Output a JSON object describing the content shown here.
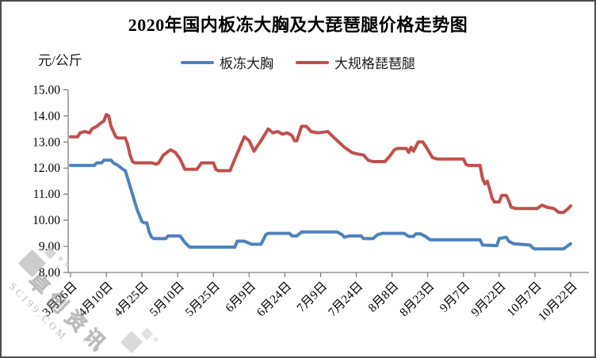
{
  "chart": {
    "title": "2020年国内板冻大胸及大琵琶腿价格走势图",
    "unit_label": "元/公斤",
    "legend": [
      {
        "label": "板冻大胸",
        "color": "#4F81BD"
      },
      {
        "label": "大规格琵琶腿",
        "color": "#C0504D"
      }
    ]
  },
  "watermark": {
    "line1": "卓创资讯",
    "line2": "SCI99.COM"
  },
  "chart_data": {
    "type": "line",
    "title": "2020年国内板冻大胸及大琵琶腿价格走势图",
    "xlabel": "",
    "ylabel": "元/公斤",
    "ylim": [
      8,
      15
    ],
    "grid": false,
    "legend_position": "top",
    "ytick_labels": [
      "15.00",
      "14.00",
      "13.00",
      "12.00",
      "11.00",
      "10.00",
      "9.00",
      "8.00"
    ],
    "xtick_labels": [
      "3月26日",
      "4月10日",
      "4月25日",
      "5月10日",
      "5月25日",
      "6月9日",
      "6月24日",
      "7月9日",
      "7月24日",
      "8月8日",
      "8月23日",
      "9月7日",
      "9月22日",
      "10月7日",
      "10月22日"
    ],
    "xtick_interval_days": 15,
    "x_domain_days": 210,
    "series": [
      {
        "name": "板冻大胸",
        "color": "#4F81BD",
        "points": [
          [
            0,
            12.1
          ],
          [
            10,
            12.1
          ],
          [
            11,
            12.2
          ],
          [
            13,
            12.2
          ],
          [
            14,
            12.3
          ],
          [
            17,
            12.3
          ],
          [
            18,
            12.2
          ],
          [
            20,
            12.1
          ],
          [
            22,
            11.95
          ],
          [
            23,
            11.9
          ],
          [
            24,
            11.6
          ],
          [
            26,
            11.0
          ],
          [
            28,
            10.4
          ],
          [
            30,
            9.95
          ],
          [
            31,
            9.9
          ],
          [
            32,
            9.9
          ],
          [
            33,
            9.55
          ],
          [
            34,
            9.35
          ],
          [
            35,
            9.3
          ],
          [
            40,
            9.3
          ],
          [
            41,
            9.4
          ],
          [
            46,
            9.4
          ],
          [
            48,
            9.15
          ],
          [
            50,
            8.97
          ],
          [
            69,
            8.97
          ],
          [
            70,
            9.2
          ],
          [
            73,
            9.2
          ],
          [
            76,
            9.08
          ],
          [
            80,
            9.08
          ],
          [
            82,
            9.45
          ],
          [
            83,
            9.5
          ],
          [
            92,
            9.5
          ],
          [
            93,
            9.4
          ],
          [
            95,
            9.4
          ],
          [
            97,
            9.55
          ],
          [
            112,
            9.55
          ],
          [
            114,
            9.45
          ],
          [
            115,
            9.35
          ],
          [
            117,
            9.4
          ],
          [
            122,
            9.4
          ],
          [
            123,
            9.3
          ],
          [
            127,
            9.3
          ],
          [
            129,
            9.45
          ],
          [
            131,
            9.5
          ],
          [
            140,
            9.5
          ],
          [
            142,
            9.38
          ],
          [
            144,
            9.38
          ],
          [
            145,
            9.48
          ],
          [
            147,
            9.48
          ],
          [
            149,
            9.38
          ],
          [
            151,
            9.25
          ],
          [
            172,
            9.25
          ],
          [
            173,
            9.05
          ],
          [
            179,
            9.03
          ],
          [
            180,
            9.3
          ],
          [
            183,
            9.35
          ],
          [
            184,
            9.2
          ],
          [
            186,
            9.1
          ],
          [
            193,
            9.05
          ],
          [
            194,
            8.95
          ],
          [
            195,
            8.9
          ],
          [
            207,
            8.9
          ],
          [
            210,
            9.1
          ]
        ]
      },
      {
        "name": "大规格琵琶腿",
        "color": "#C0504D",
        "points": [
          [
            0,
            13.2
          ],
          [
            3,
            13.2
          ],
          [
            4,
            13.35
          ],
          [
            6,
            13.4
          ],
          [
            8,
            13.35
          ],
          [
            9,
            13.5
          ],
          [
            11,
            13.6
          ],
          [
            13,
            13.75
          ],
          [
            14,
            13.8
          ],
          [
            15,
            14.05
          ],
          [
            16,
            14.0
          ],
          [
            17,
            13.6
          ],
          [
            19,
            13.2
          ],
          [
            20,
            13.15
          ],
          [
            23,
            13.15
          ],
          [
            24,
            12.9
          ],
          [
            25,
            12.5
          ],
          [
            26,
            12.25
          ],
          [
            27,
            12.2
          ],
          [
            34,
            12.2
          ],
          [
            36,
            12.15
          ],
          [
            37,
            12.2
          ],
          [
            39,
            12.5
          ],
          [
            42,
            12.7
          ],
          [
            44,
            12.6
          ],
          [
            46,
            12.35
          ],
          [
            48,
            11.95
          ],
          [
            53,
            11.95
          ],
          [
            55,
            12.2
          ],
          [
            60,
            12.2
          ],
          [
            61,
            11.95
          ],
          [
            62,
            11.9
          ],
          [
            67,
            11.9
          ],
          [
            69,
            12.35
          ],
          [
            73,
            13.2
          ],
          [
            75,
            13.05
          ],
          [
            77,
            12.65
          ],
          [
            80,
            13.05
          ],
          [
            83,
            13.5
          ],
          [
            85,
            13.35
          ],
          [
            87,
            13.4
          ],
          [
            89,
            13.3
          ],
          [
            91,
            13.35
          ],
          [
            93,
            13.25
          ],
          [
            94,
            13.05
          ],
          [
            95,
            13.05
          ],
          [
            97,
            13.6
          ],
          [
            99,
            13.6
          ],
          [
            101,
            13.4
          ],
          [
            104,
            13.35
          ],
          [
            108,
            13.4
          ],
          [
            112,
            13.05
          ],
          [
            115,
            12.8
          ],
          [
            118,
            12.6
          ],
          [
            120,
            12.55
          ],
          [
            123,
            12.5
          ],
          [
            125,
            12.3
          ],
          [
            127,
            12.25
          ],
          [
            132,
            12.25
          ],
          [
            134,
            12.45
          ],
          [
            136,
            12.7
          ],
          [
            137,
            12.75
          ],
          [
            141,
            12.75
          ],
          [
            142,
            12.6
          ],
          [
            143,
            12.8
          ],
          [
            144,
            12.65
          ],
          [
            146,
            13.0
          ],
          [
            148,
            13.0
          ],
          [
            150,
            12.7
          ],
          [
            152,
            12.4
          ],
          [
            154,
            12.35
          ],
          [
            165,
            12.35
          ],
          [
            166,
            12.15
          ],
          [
            167,
            12.1
          ],
          [
            172,
            12.1
          ],
          [
            173,
            11.6
          ],
          [
            174,
            11.4
          ],
          [
            175,
            11.5
          ],
          [
            176,
            11.2
          ],
          [
            177,
            10.85
          ],
          [
            178,
            10.7
          ],
          [
            180,
            10.7
          ],
          [
            181,
            10.95
          ],
          [
            183,
            10.95
          ],
          [
            184,
            10.75
          ],
          [
            185,
            10.5
          ],
          [
            187,
            10.45
          ],
          [
            196,
            10.45
          ],
          [
            198,
            10.58
          ],
          [
            200,
            10.5
          ],
          [
            203,
            10.45
          ],
          [
            205,
            10.3
          ],
          [
            207,
            10.3
          ],
          [
            209,
            10.45
          ],
          [
            210,
            10.55
          ]
        ]
      }
    ]
  }
}
